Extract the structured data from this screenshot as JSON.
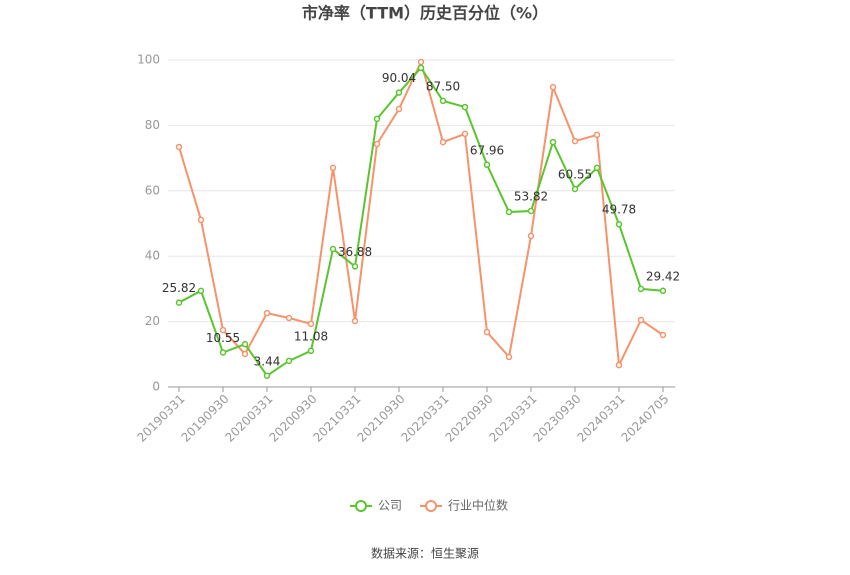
{
  "chart_data": {
    "type": "line",
    "title": "市净率（TTM）历史百分位（%）",
    "source": "数据来源：恒生聚源",
    "categories": [
      "20190331",
      null,
      "20190930",
      null,
      "20200331",
      null,
      "20200930",
      null,
      "20210331",
      null,
      "20210930",
      null,
      "20220331",
      null,
      "20220930",
      null,
      "20230331",
      null,
      "20230930",
      null,
      "20240331",
      null,
      "20240705"
    ],
    "series": [
      {
        "name": "公司",
        "color": "#5ac52e",
        "values": [
          25.82,
          29.4,
          10.55,
          13.1,
          3.44,
          8.0,
          11.08,
          42.2,
          36.88,
          82.0,
          90.04,
          97.6,
          87.5,
          85.6,
          67.96,
          53.5,
          53.82,
          74.9,
          60.55,
          67.0,
          49.78,
          30.0,
          29.42
        ],
        "value_labels": [
          "25.82",
          null,
          "10.55",
          null,
          "3.44",
          null,
          "11.08",
          null,
          "36.88",
          null,
          "90.04",
          null,
          "87.50",
          null,
          "67.96",
          null,
          "53.82",
          null,
          "60.55",
          null,
          "49.78",
          null,
          "29.42"
        ]
      },
      {
        "name": "行业中位数",
        "color": "#f5936b",
        "values": [
          73.4,
          51.1,
          17.4,
          10.1,
          22.6,
          21.1,
          19.3,
          67.0,
          20.2,
          74.3,
          85.0,
          99.4,
          74.9,
          77.4,
          16.8,
          9.2,
          46.2,
          91.7,
          75.2,
          77.1,
          6.7,
          20.5,
          15.9
        ]
      }
    ],
    "ylim": [
      0,
      100
    ],
    "yticks": [
      0,
      20,
      40,
      60,
      80,
      100
    ],
    "grid": true,
    "legend": "bottom"
  }
}
